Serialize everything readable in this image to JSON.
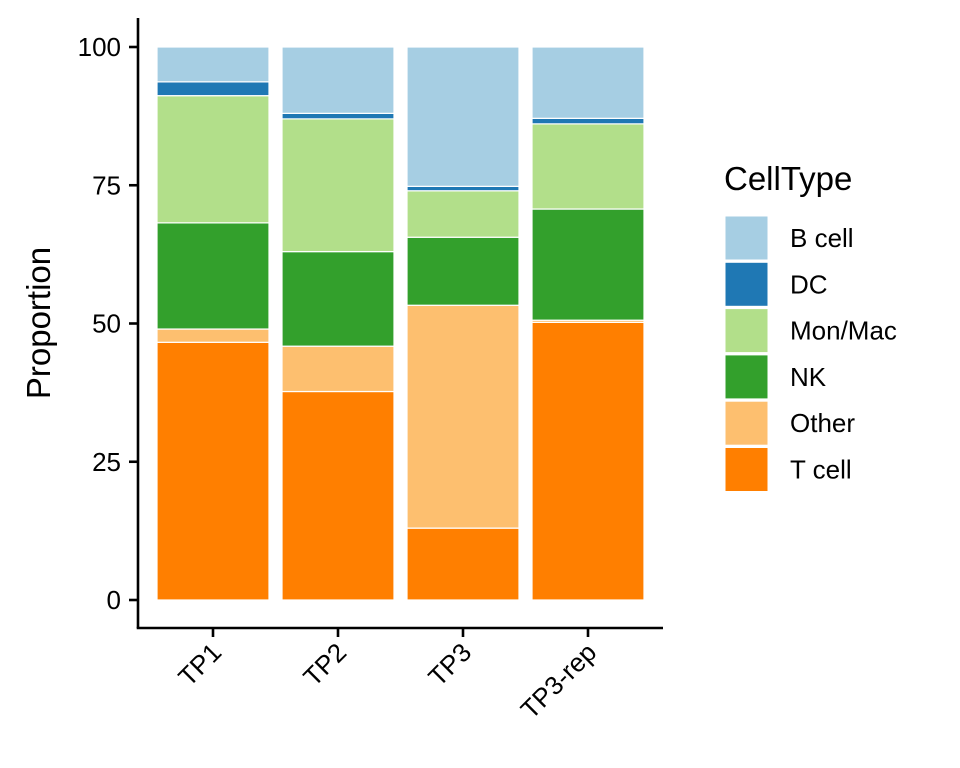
{
  "chart_data": {
    "type": "bar",
    "stacked": true,
    "categories": [
      "TP1",
      "TP2",
      "TP3",
      "TP3-rep"
    ],
    "ylabel": "Proportion",
    "xlabel": "",
    "ylim": [
      0,
      100
    ],
    "yticks": [
      "0",
      "25",
      "50",
      "75",
      "100"
    ],
    "legend_title": "CellType",
    "legend_position": "right",
    "grid": false,
    "series": [
      {
        "name": "T cell",
        "color": "#FF7F00",
        "values": [
          46.6,
          37.7,
          13.0,
          50.2
        ]
      },
      {
        "name": "Other",
        "color": "#FDBF6F",
        "values": [
          2.4,
          8.2,
          40.3,
          0.4
        ]
      },
      {
        "name": "NK",
        "color": "#33A02C",
        "values": [
          19.2,
          17.1,
          12.3,
          20.1
        ]
      },
      {
        "name": "Mon/Mac",
        "color": "#B2DF8A",
        "values": [
          23.0,
          24.0,
          8.4,
          15.4
        ]
      },
      {
        "name": "DC",
        "color": "#1F78B4",
        "values": [
          2.5,
          1.0,
          0.8,
          1.0
        ]
      },
      {
        "name": "B cell",
        "color": "#A6CEE3",
        "values": [
          6.3,
          12.0,
          25.2,
          12.9
        ]
      }
    ],
    "legend_order": [
      "B cell",
      "DC",
      "Mon/Mac",
      "NK",
      "Other",
      "T cell"
    ]
  }
}
